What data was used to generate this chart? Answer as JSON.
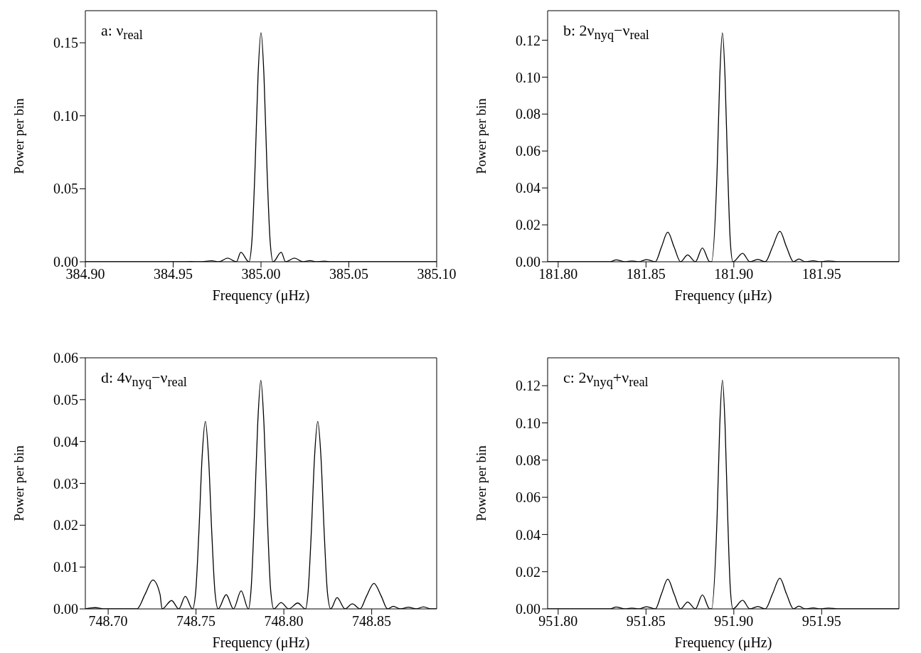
{
  "chart_data": [
    {
      "type": "line",
      "annotations": [
        "a: ν$_{real}$"
      ],
      "xlabel": "Frequency (μHz)",
      "ylabel": "Power per bin",
      "xlim": [
        384.9,
        385.1
      ],
      "ylim": [
        0,
        0.172
      ],
      "xticks": [
        {
          "value": 384.9,
          "label": "384.90"
        },
        {
          "value": 384.95,
          "label": "384.95"
        },
        {
          "value": 385.0,
          "label": "385.00"
        },
        {
          "value": 385.05,
          "label": "385.05"
        },
        {
          "value": 385.1,
          "label": "385.10"
        }
      ],
      "yticks": [
        {
          "value": 0,
          "label": "0.00"
        },
        {
          "value": 0.05,
          "label": "0.05"
        },
        {
          "value": 0.1,
          "label": "0.10"
        },
        {
          "value": 0.15,
          "label": "0.15"
        }
      ],
      "series": [
        {
          "color": "#000000",
          "x": [
            384.9,
            384.955,
            384.96,
            384.965,
            384.972,
            384.976,
            384.981,
            384.986,
            384.9885,
            384.9931,
            384.9948,
            384.9966,
            384.9983,
            385.0,
            385.0017,
            385.0034,
            385.0052,
            385.0069,
            385.0115,
            385.014,
            385.019,
            385.024,
            385.028,
            385.031,
            385.036,
            385.04,
            385.1
          ],
          "values": [
            0,
            0,
            0.0002,
            0,
            0.0007,
            0,
            0.0025,
            0,
            0.0065,
            0,
            0.014,
            0.064,
            0.127,
            0.157,
            0.127,
            0.064,
            0.014,
            0,
            0.0065,
            0,
            0.0025,
            0,
            0.0008,
            0,
            0.0004,
            0,
            0
          ]
        }
      ]
    },
    {
      "type": "line",
      "annotations": [
        "b: 2ν$_{nyq}$−ν$_{real}$"
      ],
      "xlabel": "Frequency (μHz)",
      "ylabel": "Power per bin",
      "xlim": [
        181.794,
        181.994
      ],
      "ylim": [
        0,
        0.136
      ],
      "xticks": [
        {
          "value": 181.8,
          "label": "181.80"
        },
        {
          "value": 181.85,
          "label": "181.85"
        },
        {
          "value": 181.9,
          "label": "181.90"
        },
        {
          "value": 181.95,
          "label": "181.95"
        }
      ],
      "yticks": [
        {
          "value": 0,
          "label": "0.00"
        },
        {
          "value": 0.02,
          "label": "0.02"
        },
        {
          "value": 0.04,
          "label": "0.04"
        },
        {
          "value": 0.06,
          "label": "0.06"
        },
        {
          "value": 0.08,
          "label": "0.08"
        },
        {
          "value": 0.1,
          "label": "0.10"
        },
        {
          "value": 0.12,
          "label": "0.12"
        }
      ],
      "series": [
        {
          "color": "#000000",
          "x": [
            181.794,
            181.825,
            181.8296,
            181.833,
            181.838,
            181.842,
            181.846,
            181.8503,
            181.8553,
            181.8588,
            181.8624,
            181.866,
            181.8697,
            181.8737,
            181.8781,
            181.8821,
            181.8863,
            181.8873,
            181.8905,
            181.892,
            181.8935,
            181.895,
            181.8965,
            181.898,
            181.8995,
            181.905,
            181.9091,
            181.9137,
            181.9179,
            181.922,
            181.9262,
            181.93,
            181.934,
            181.937,
            181.9406,
            181.9452,
            181.9493,
            181.9538,
            181.96,
            181.994
          ],
          "values": [
            0,
            0,
            0,
            0.001,
            0,
            0.0004,
            0,
            0.0012,
            0,
            0.008,
            0.016,
            0.008,
            0,
            0.0037,
            0,
            0.0075,
            0,
            0,
            0.05,
            0.1,
            0.124,
            0.1,
            0.05,
            0.011,
            0,
            0.0046,
            0,
            0.0013,
            0,
            0.008,
            0.0165,
            0.008,
            0,
            0.0015,
            0,
            0.0005,
            0,
            0.0004,
            0,
            0
          ]
        }
      ]
    },
    {
      "type": "line",
      "annotations": [
        "d: 4ν$_{nyq}$−ν$_{real}$"
      ],
      "xlabel": "Frequency (μHz)",
      "ylabel": "Power per bin",
      "xlim": [
        748.687,
        748.887
      ],
      "ylim": [
        0,
        0.06
      ],
      "xticks": [
        {
          "value": 748.7,
          "label": "748.70"
        },
        {
          "value": 748.75,
          "label": "748.75"
        },
        {
          "value": 748.8,
          "label": "748.80"
        },
        {
          "value": 748.85,
          "label": "748.85"
        }
      ],
      "yticks": [
        {
          "value": 0,
          "label": "0.00"
        },
        {
          "value": 0.01,
          "label": "0.01"
        },
        {
          "value": 0.02,
          "label": "0.02"
        },
        {
          "value": 0.03,
          "label": "0.03"
        },
        {
          "value": 0.04,
          "label": "0.04"
        },
        {
          "value": 0.05,
          "label": "0.05"
        },
        {
          "value": 0.06,
          "label": "0.06"
        }
      ],
      "series": [
        {
          "color": "#000000",
          "x": [
            748.687,
            748.6926,
            748.698,
            748.7164,
            748.721,
            748.7254,
            748.7295,
            748.7307,
            748.7361,
            748.7402,
            748.7439,
            748.748,
            748.7498,
            748.7516,
            748.7535,
            748.7553,
            748.7571,
            748.759,
            748.7608,
            748.7626,
            748.7672,
            748.7713,
            748.7757,
            748.7798,
            748.7814,
            748.7832,
            748.7851,
            748.7869,
            748.7887,
            748.7906,
            748.7924,
            748.7943,
            748.7984,
            748.8028,
            748.8079,
            748.8123,
            748.8138,
            748.8156,
            748.8175,
            748.8193,
            748.8211,
            748.823,
            748.8248,
            748.8267,
            748.8303,
            748.8348,
            748.839,
            748.8434,
            748.847,
            748.8513,
            748.8555,
            748.859,
            748.8623,
            748.8664,
            748.871,
            748.8754,
            748.8795,
            748.8836,
            748.887
          ],
          "values": [
            0,
            0.0003,
            0,
            0,
            0.0035,
            0.0069,
            0.0035,
            0,
            0.002,
            0,
            0.003,
            0,
            0.004,
            0.018,
            0.0365,
            0.0448,
            0.0365,
            0.018,
            0.004,
            0,
            0.0034,
            0,
            0.0043,
            0,
            0.005,
            0.022,
            0.044,
            0.0546,
            0.044,
            0.022,
            0.005,
            0,
            0.0015,
            0,
            0.0014,
            0,
            0.004,
            0.018,
            0.0365,
            0.0448,
            0.0365,
            0.018,
            0.004,
            0,
            0.0027,
            0,
            0.0012,
            0,
            0.003,
            0.0061,
            0.003,
            0,
            0.0006,
            0,
            0.0004,
            0,
            0.0005,
            0,
            0
          ]
        }
      ]
    },
    {
      "type": "line",
      "annotations": [
        "c: 2ν$_{nyq}$+ν$_{real}$"
      ],
      "xlabel": "Frequency (μHz)",
      "ylabel": "Power per bin",
      "xlim": [
        951.794,
        951.994
      ],
      "ylim": [
        0,
        0.135
      ],
      "xticks": [
        {
          "value": 951.8,
          "label": "951.80"
        },
        {
          "value": 951.85,
          "label": "951.85"
        },
        {
          "value": 951.9,
          "label": "951.90"
        },
        {
          "value": 951.95,
          "label": "951.95"
        }
      ],
      "yticks": [
        {
          "value": 0,
          "label": "0.00"
        },
        {
          "value": 0.02,
          "label": "0.02"
        },
        {
          "value": 0.04,
          "label": "0.04"
        },
        {
          "value": 0.06,
          "label": "0.06"
        },
        {
          "value": 0.08,
          "label": "0.08"
        },
        {
          "value": 0.1,
          "label": "0.10"
        },
        {
          "value": 0.12,
          "label": "0.12"
        }
      ],
      "series": [
        {
          "color": "#000000",
          "x": [
            951.794,
            951.825,
            951.8296,
            951.833,
            951.838,
            951.842,
            951.846,
            951.8503,
            951.8553,
            951.8588,
            951.8624,
            951.866,
            951.8697,
            951.8737,
            951.8781,
            951.8821,
            951.8863,
            951.8873,
            951.8905,
            951.892,
            951.8935,
            951.895,
            951.8965,
            951.898,
            951.8995,
            951.905,
            951.9091,
            951.9137,
            951.9179,
            951.922,
            951.9262,
            951.93,
            951.934,
            951.937,
            951.9406,
            951.9452,
            951.9493,
            951.9538,
            951.96,
            951.994
          ],
          "values": [
            0,
            0,
            0,
            0.001,
            0,
            0.0004,
            0,
            0.0012,
            0,
            0.008,
            0.016,
            0.008,
            0,
            0.0037,
            0,
            0.0075,
            0,
            0,
            0.05,
            0.099,
            0.123,
            0.099,
            0.05,
            0.011,
            0,
            0.0046,
            0,
            0.0013,
            0,
            0.008,
            0.0165,
            0.008,
            0,
            0.0015,
            0,
            0.0005,
            0,
            0.0004,
            0,
            0
          ]
        }
      ]
    }
  ]
}
